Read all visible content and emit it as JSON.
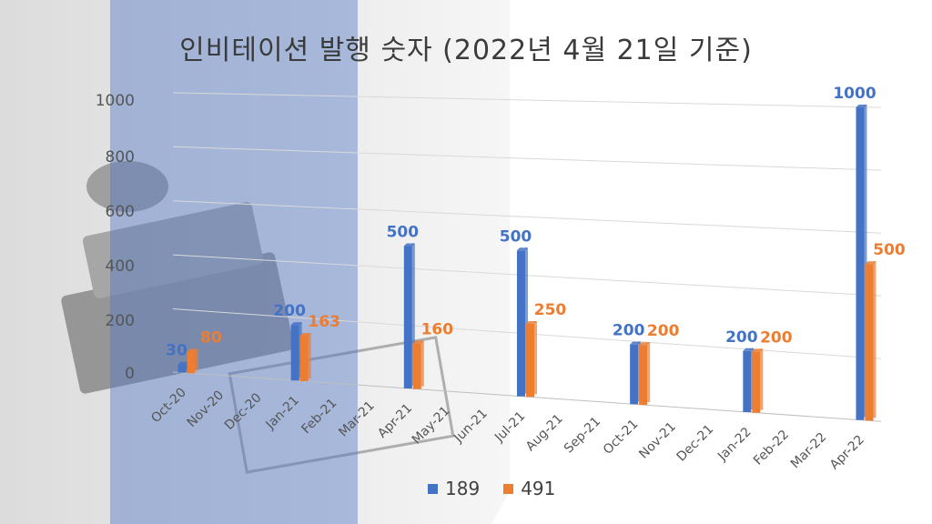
{
  "colors": {
    "series_189": "#4472C4",
    "series_491": "#ED7D31",
    "panel": "#5278C4"
  },
  "chart_data": {
    "type": "bar",
    "title": "인비테이션 발행 숫자 (2022년 4월 21일 기준)",
    "categories": [
      "Oct-20",
      "Nov-20",
      "Dec-20",
      "Jan-21",
      "Feb-21",
      "Mar-21",
      "Apr-21",
      "May-21",
      "Jun-21",
      "Jul-21",
      "Aug-21",
      "Sep-21",
      "Oct-21",
      "Nov-21",
      "Dec-21",
      "Jan-22",
      "Feb-22",
      "Mar-22",
      "Apr-22"
    ],
    "yticks": [
      "0",
      "200",
      "400",
      "600",
      "800",
      "1000"
    ],
    "ylim": [
      0,
      1000
    ],
    "series": [
      {
        "name": "189",
        "values": [
          30,
          null,
          null,
          200,
          null,
          null,
          500,
          null,
          null,
          500,
          null,
          null,
          200,
          null,
          null,
          200,
          null,
          null,
          1000
        ]
      },
      {
        "name": "491",
        "values": [
          80,
          null,
          null,
          163,
          null,
          null,
          160,
          null,
          null,
          250,
          null,
          null,
          200,
          null,
          null,
          200,
          null,
          null,
          500
        ]
      }
    ],
    "legend": [
      "189",
      "491"
    ],
    "legend_position": "bottom"
  }
}
